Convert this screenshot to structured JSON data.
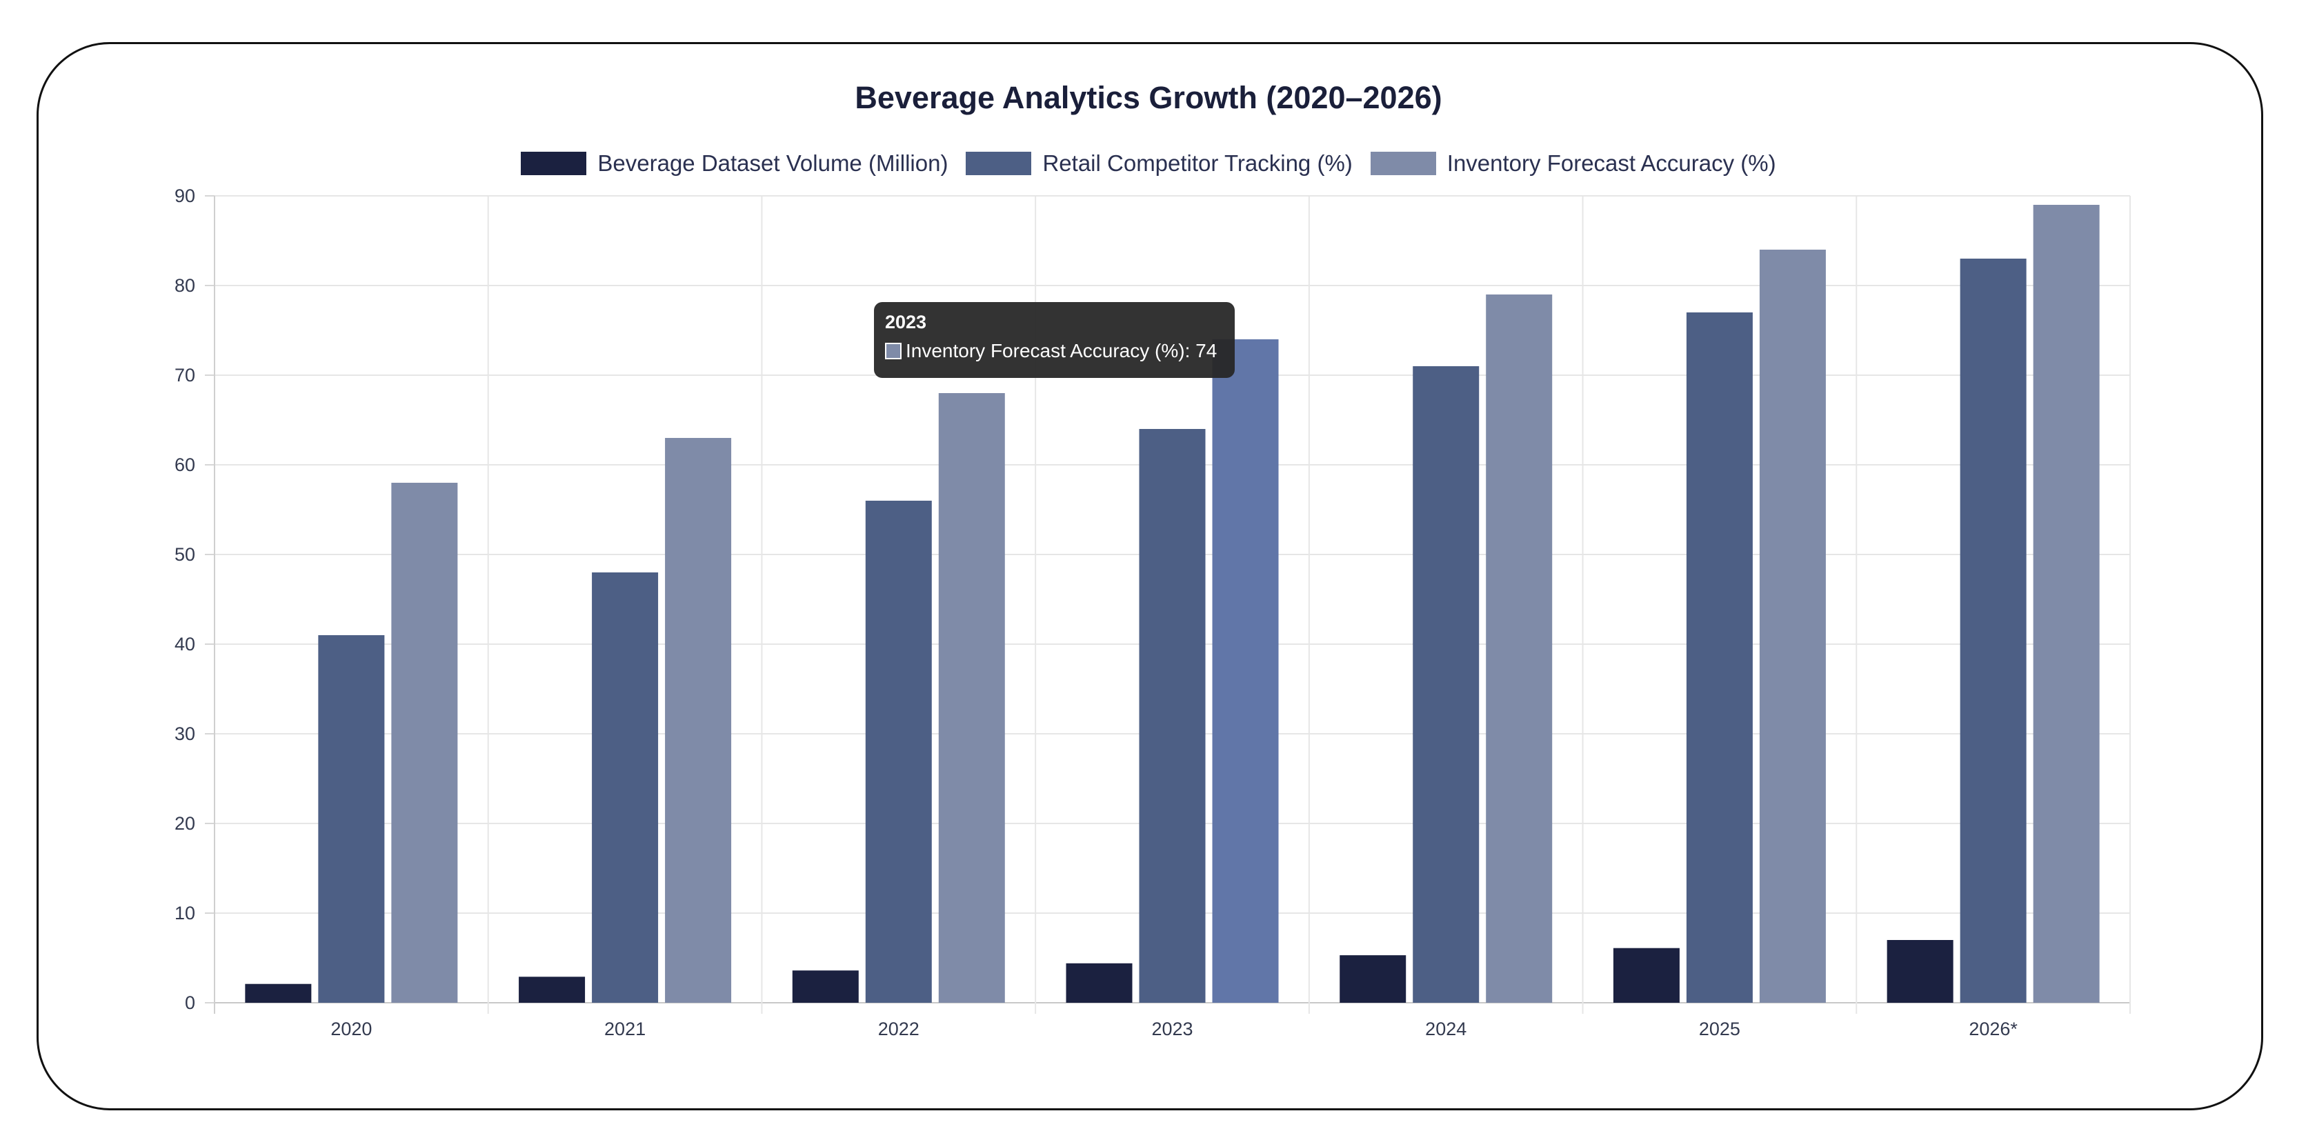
{
  "chart_data": {
    "type": "bar",
    "title": "Beverage Analytics Growth (2020–2026)",
    "categories": [
      "2020",
      "2021",
      "2022",
      "2023",
      "2024",
      "2025",
      "2026*"
    ],
    "series": [
      {
        "name": "Beverage Dataset Volume (Million)",
        "color": "#1b2140",
        "values": [
          2.1,
          2.9,
          3.6,
          4.4,
          5.3,
          6.1,
          7.0
        ]
      },
      {
        "name": "Retail Competitor Tracking (%)",
        "color": "#4d5f85",
        "values": [
          41,
          48,
          56,
          64,
          71,
          77,
          83
        ]
      },
      {
        "name": "Inventory Forecast Accuracy (%)",
        "color": "#7f8ba8",
        "values": [
          58,
          63,
          68,
          74,
          79,
          84,
          89
        ]
      }
    ],
    "ylim": [
      0,
      90
    ],
    "yticks": [
      "0",
      "10",
      "20",
      "30",
      "40",
      "50",
      "60",
      "70",
      "80",
      "90"
    ],
    "grid": true,
    "legend_position": "top-center",
    "highlight": {
      "category": "2023",
      "series": "Inventory Forecast Accuracy (%)",
      "color": "#6176a8"
    }
  },
  "tooltip": {
    "title": "2023",
    "text": "Inventory Forecast Accuracy (%): 74"
  }
}
